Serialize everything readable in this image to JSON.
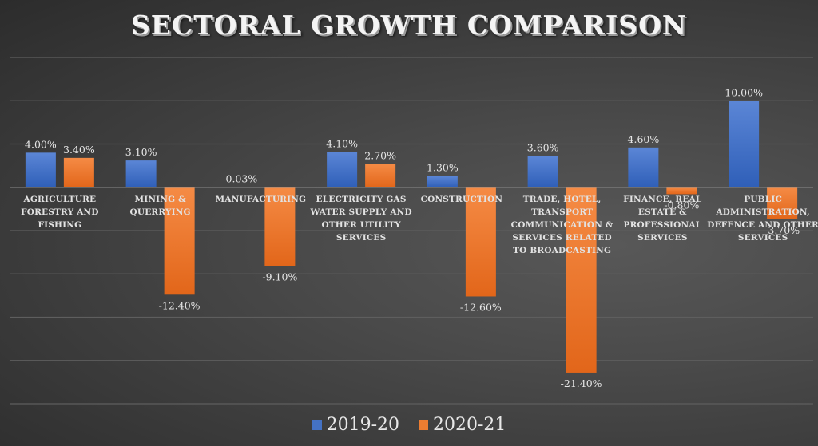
{
  "chart_data": {
    "type": "bar",
    "title": "SECTORAL GROWTH COMPARISON",
    "xlabel": "",
    "ylabel": "",
    "ylim": [
      -25,
      15
    ],
    "ytick_step": 5,
    "grid": true,
    "legend_position": "bottom",
    "categories": [
      "AGRICULTURE FORESTRY AND FISHING",
      "MINING & QUERRYING",
      "MANUFACTURING",
      "ELECTRICITY GAS WATER SUPPLY AND OTHER UTILITY SERVICES",
      "CONSTRUCTION",
      "TRADE, HOTEL, TRANSPORT COMMUNICATION & SERVICES RELATED TO BROADCASTING",
      "FINANCE, REAL ESTATE & PROFESSIONAL SERVICES",
      "PUBLIC ADMINISTRATION, DEFENCE AND OTHER SERVICES"
    ],
    "category_label_lines": [
      [
        "AGRICULTURE",
        "FORESTRY AND",
        "FISHING"
      ],
      [
        "MINING &",
        "QUERRYING"
      ],
      [
        "MANUFACTURING"
      ],
      [
        "ELECTRICITY GAS",
        "WATER SUPPLY AND",
        "OTHER UTILITY",
        "SERVICES"
      ],
      [
        "CONSTRUCTION"
      ],
      [
        "TRADE, HOTEL,",
        "TRANSPORT",
        "COMMUNICATION &",
        "SERVICES RELATED",
        "TO BROADCASTING"
      ],
      [
        "FINANCE, REAL",
        "ESTATE &",
        "PROFESSIONAL",
        "SERVICES"
      ],
      [
        "PUBLIC",
        "ADMINISTRATION,",
        "DEFENCE AND OTHER",
        "SERVICES"
      ]
    ],
    "series": [
      {
        "name": "2019-20",
        "color": "#4472c4",
        "values": [
          4.0,
          3.1,
          0.03,
          4.1,
          1.3,
          3.6,
          4.6,
          10.0
        ],
        "labels": [
          "4.00%",
          "3.10%",
          "0.03%",
          "4.10%",
          "1.30%",
          "3.60%",
          "4.60%",
          "10.00%"
        ]
      },
      {
        "name": "2020-21",
        "color": "#ed7d31",
        "values": [
          3.4,
          -12.4,
          -9.1,
          2.7,
          -12.6,
          -21.4,
          -0.8,
          -3.7
        ],
        "labels": [
          "3.40%",
          "-12.40%",
          "-9.10%",
          "2.70%",
          "-12.60%",
          "-21.40%",
          "-0.80%",
          "-3.70%"
        ]
      }
    ]
  }
}
